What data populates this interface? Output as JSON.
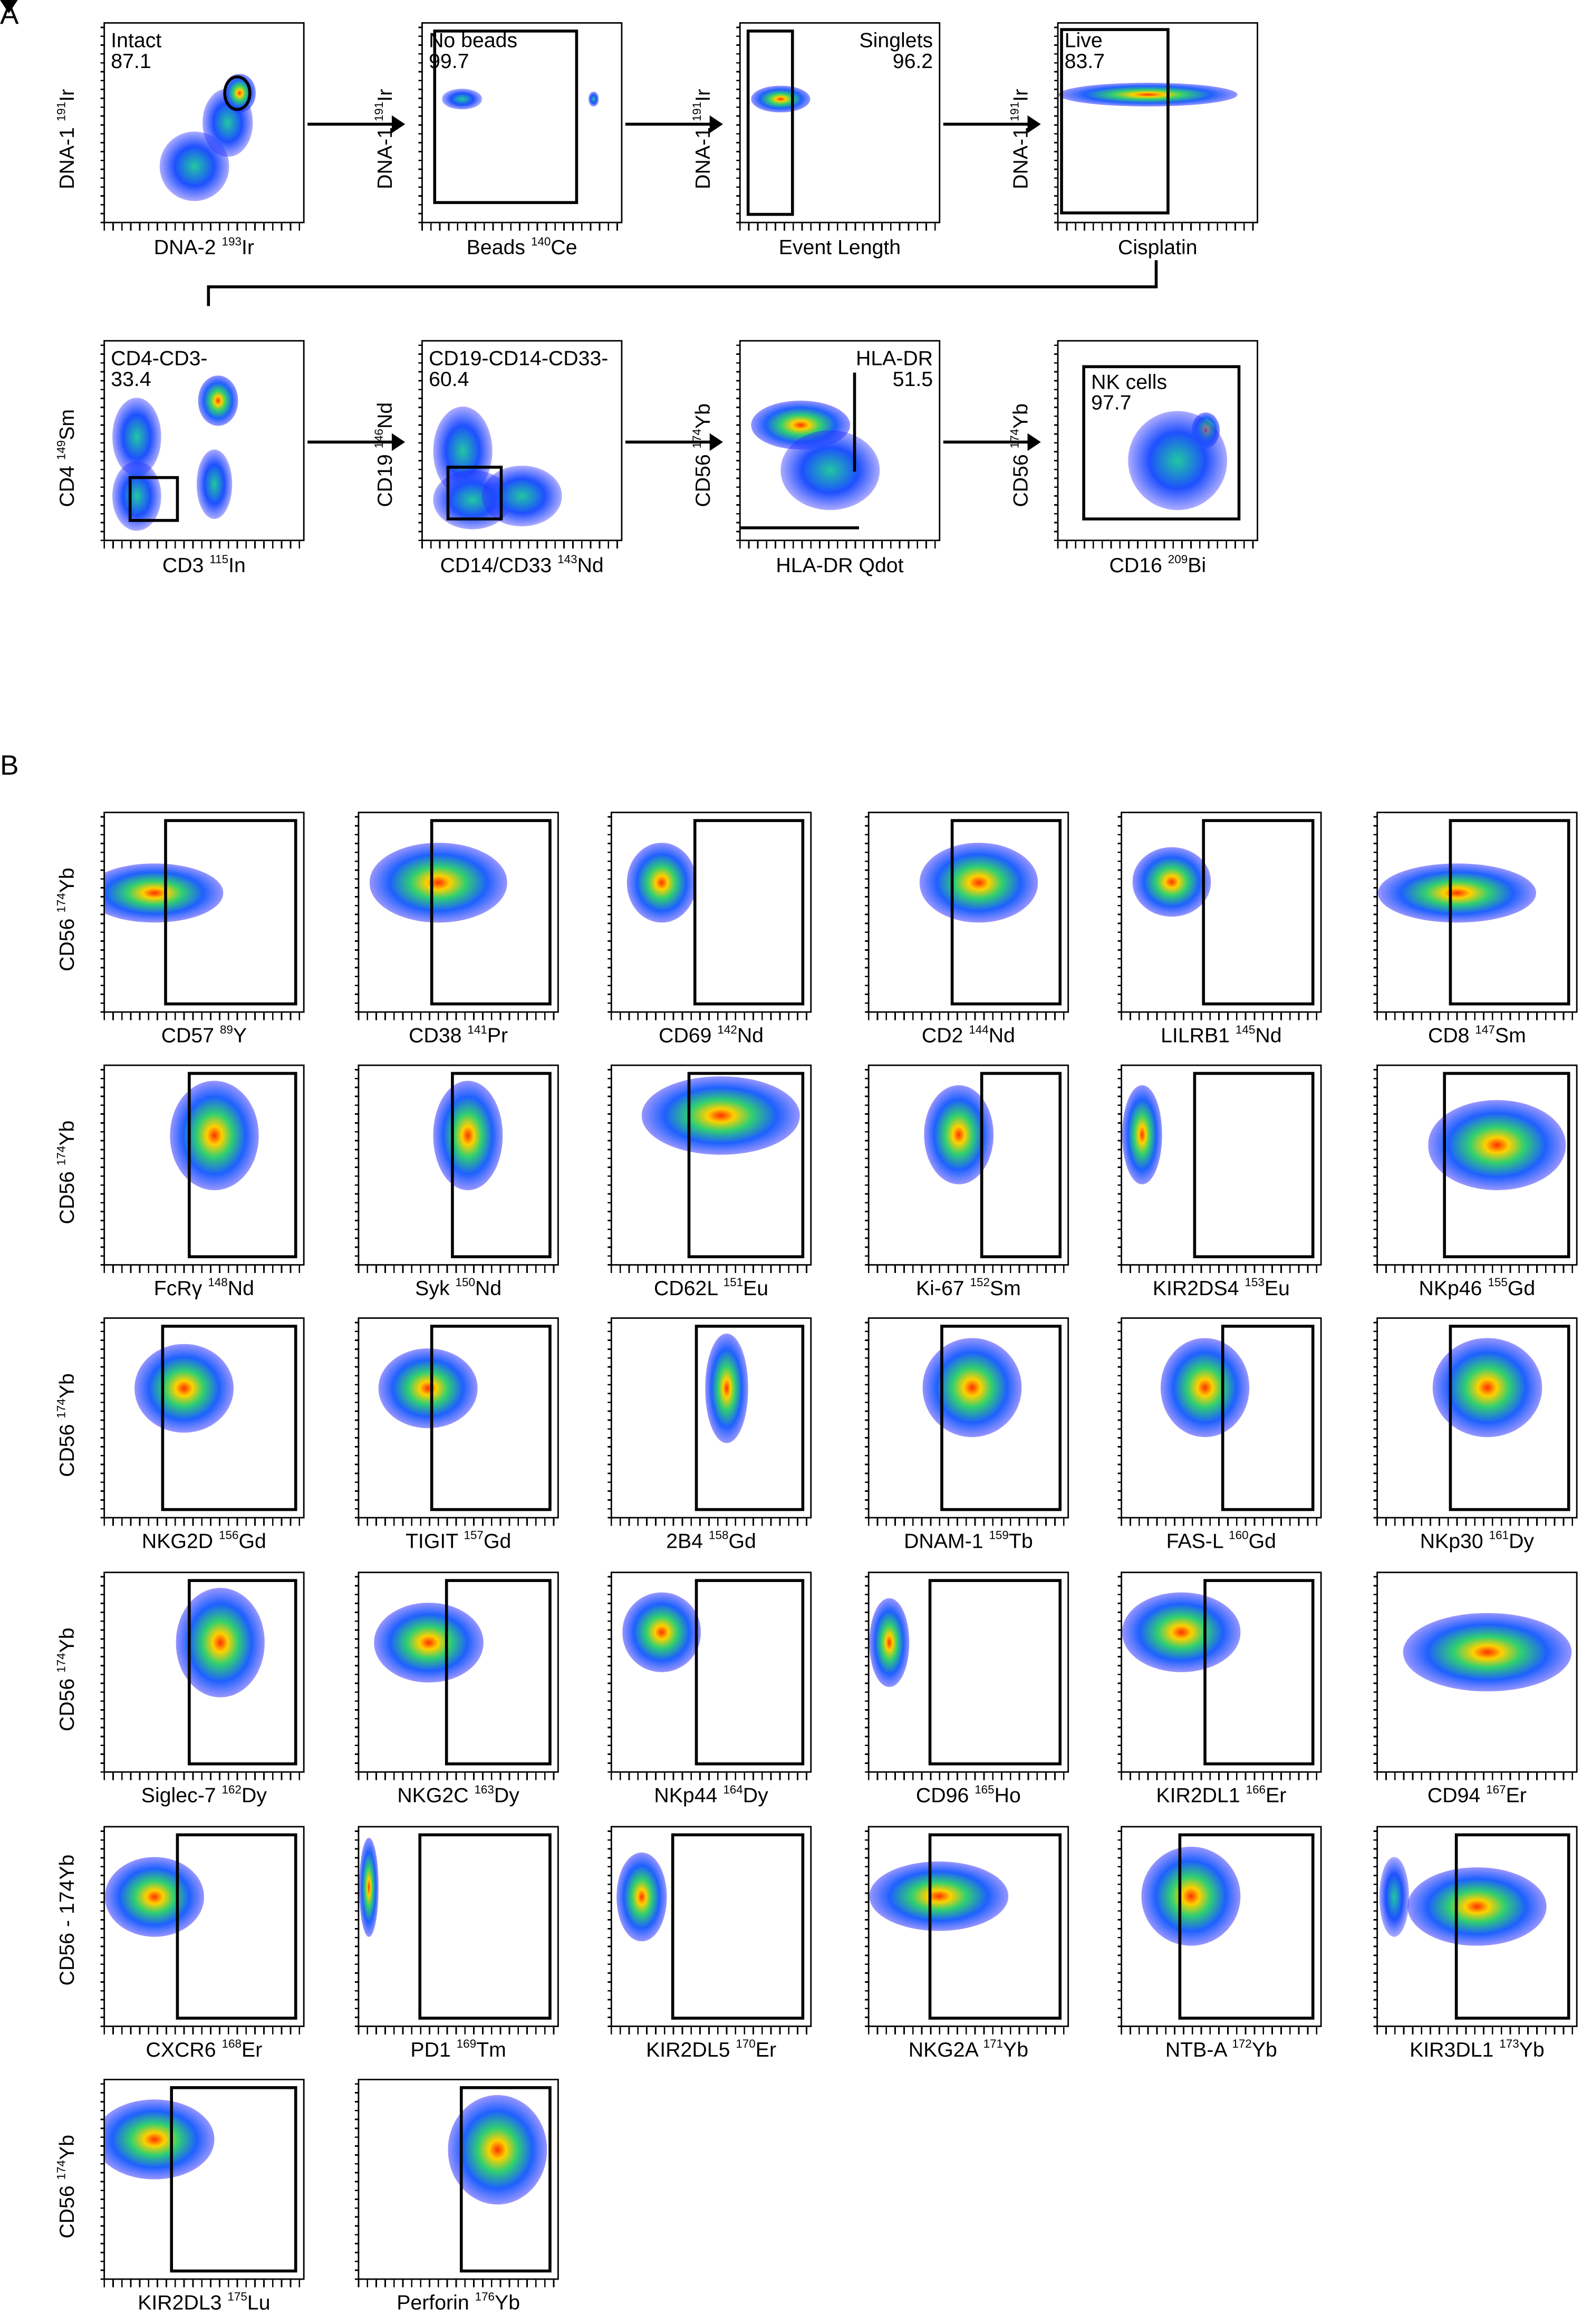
{
  "panel_a": {
    "label": "A",
    "plots": [
      {
        "gate": "Intact",
        "value": "87.1",
        "x": {
          "name": "DNA-2 ",
          "mass": "193",
          "el": "Ir"
        },
        "y": {
          "name": "DNA-1 ",
          "mass": "191",
          "el": "Ir"
        }
      },
      {
        "gate": "No beads",
        "value": "99.7",
        "x": {
          "name": "Beads ",
          "mass": "140",
          "el": "Ce"
        },
        "y": {
          "name": "DNA-1 ",
          "mass": "191",
          "el": "Ir"
        }
      },
      {
        "gate": "Singlets",
        "value": "96.2",
        "x": {
          "name": "Event Length",
          "mass": "",
          "el": ""
        },
        "y": {
          "name": "DNA-1 ",
          "mass": "191",
          "el": "Ir"
        }
      },
      {
        "gate": "Live",
        "value": "83.7",
        "x": {
          "name": "Cisplatin",
          "mass": "",
          "el": ""
        },
        "y": {
          "name": "DNA-1 ",
          "mass": "191",
          "el": "Ir"
        }
      },
      {
        "gate": "CD4-CD3-",
        "value": "33.4",
        "x": {
          "name": "CD3 ",
          "mass": "115",
          "el": "In"
        },
        "y": {
          "name": "CD4 ",
          "mass": "149",
          "el": "Sm"
        }
      },
      {
        "gate": "CD19-CD14-CD33-",
        "value": "60.4",
        "x": {
          "name": "CD14/CD33 ",
          "mass": "143",
          "el": "Nd"
        },
        "y": {
          "name": "CD19 ",
          "mass": "146",
          "el": "Nd"
        }
      },
      {
        "gate": "HLA-DR",
        "value": "51.5",
        "x": {
          "name": "HLA-DR Qdot",
          "mass": "",
          "el": ""
        },
        "y": {
          "name": "CD56 ",
          "mass": "174",
          "el": "Yb"
        }
      },
      {
        "gate": "NK cells",
        "value": "97.7",
        "x": {
          "name": "CD16 ",
          "mass": "209",
          "el": "Bi"
        },
        "y": {
          "name": "CD56 ",
          "mass": "174",
          "el": "Yb"
        }
      }
    ]
  },
  "panel_b": {
    "label": "B",
    "row_ylabels": [
      {
        "name": "CD56 ",
        "mass": "174",
        "el": "Yb"
      },
      {
        "name": "CD56 ",
        "mass": "174",
        "el": "Yb"
      },
      {
        "name": "CD56 ",
        "mass": "174",
        "el": "Yb"
      },
      {
        "name": "CD56 ",
        "mass": "174",
        "el": "Yb"
      },
      {
        "name": "CD56 - 174Yb",
        "mass": "",
        "el": ""
      },
      {
        "name": "CD56 ",
        "mass": "174",
        "el": "Yb"
      }
    ],
    "plots": [
      {
        "name": "CD57 ",
        "mass": "89",
        "el": "Y"
      },
      {
        "name": "CD38 ",
        "mass": "141",
        "el": "Pr"
      },
      {
        "name": "CD69 ",
        "mass": "142",
        "el": "Nd"
      },
      {
        "name": "CD2 ",
        "mass": "144",
        "el": "Nd"
      },
      {
        "name": "LILRB1 ",
        "mass": "145",
        "el": "Nd"
      },
      {
        "name": "CD8 ",
        "mass": "147",
        "el": "Sm"
      },
      {
        "name": "FcRγ ",
        "mass": "148",
        "el": "Nd"
      },
      {
        "name": "Syk ",
        "mass": "150",
        "el": "Nd"
      },
      {
        "name": "CD62L ",
        "mass": "151",
        "el": "Eu"
      },
      {
        "name": "Ki-67 ",
        "mass": "152",
        "el": "Sm"
      },
      {
        "name": "KIR2DS4 ",
        "mass": "153",
        "el": "Eu"
      },
      {
        "name": "NKp46 ",
        "mass": "155",
        "el": "Gd"
      },
      {
        "name": "NKG2D ",
        "mass": "156",
        "el": "Gd"
      },
      {
        "name": "TIGIT ",
        "mass": "157",
        "el": "Gd"
      },
      {
        "name": "2B4 ",
        "mass": "158",
        "el": "Gd"
      },
      {
        "name": "DNAM-1 ",
        "mass": "159",
        "el": "Tb"
      },
      {
        "name": "FAS-L ",
        "mass": "160",
        "el": "Gd"
      },
      {
        "name": "NKp30 ",
        "mass": "161",
        "el": "Dy"
      },
      {
        "name": "Siglec-7 ",
        "mass": "162",
        "el": "Dy"
      },
      {
        "name": "NKG2C ",
        "mass": "163",
        "el": "Dy"
      },
      {
        "name": "NKp44 ",
        "mass": "164",
        "el": "Dy"
      },
      {
        "name": "CD96 ",
        "mass": "165",
        "el": "Ho"
      },
      {
        "name": "KIR2DL1 ",
        "mass": "166",
        "el": "Er"
      },
      {
        "name": "CD94 ",
        "mass": "167",
        "el": "Er"
      },
      {
        "name": "CXCR6 ",
        "mass": "168",
        "el": "Er"
      },
      {
        "name": "PD1 ",
        "mass": "169",
        "el": "Tm"
      },
      {
        "name": "KIR2DL5 ",
        "mass": "170",
        "el": "Er"
      },
      {
        "name": "NKG2A ",
        "mass": "171",
        "el": "Yb"
      },
      {
        "name": "NTB-A ",
        "mass": "172",
        "el": "Yb"
      },
      {
        "name": "KIR3DL1 ",
        "mass": "173",
        "el": "Yb"
      },
      {
        "name": "KIR2DL3 ",
        "mass": "175",
        "el": "Lu"
      },
      {
        "name": "Perforin ",
        "mass": "176",
        "el": "Yb"
      }
    ]
  },
  "colors": {
    "low": "#1a1aff",
    "mid": "#22cc88",
    "high": "#ff2a00",
    "gate": "#000000"
  }
}
